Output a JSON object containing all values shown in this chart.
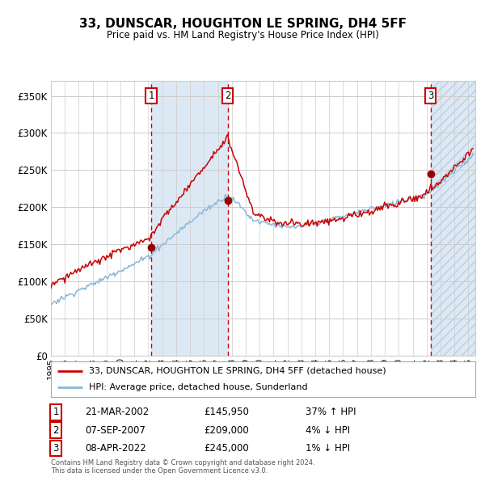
{
  "title": "33, DUNSCAR, HOUGHTON LE SPRING, DH4 5FF",
  "subtitle": "Price paid vs. HM Land Registry's House Price Index (HPI)",
  "ylabel_ticks": [
    "£0",
    "£50K",
    "£100K",
    "£150K",
    "£200K",
    "£250K",
    "£300K",
    "£350K"
  ],
  "ytick_values": [
    0,
    50000,
    100000,
    150000,
    200000,
    250000,
    300000,
    350000
  ],
  "ylim": [
    0,
    370000
  ],
  "x_start_year": 1995,
  "x_end_year": 2025,
  "legend_line1": "33, DUNSCAR, HOUGHTON LE SPRING, DH4 5FF (detached house)",
  "legend_line2": "HPI: Average price, detached house, Sunderland",
  "sale1_date": "21-MAR-2002",
  "sale1_price": 145950,
  "sale1_pct": "37%",
  "sale1_dir": "↑",
  "sale2_date": "07-SEP-2007",
  "sale2_price": 209000,
  "sale2_pct": "4%",
  "sale2_dir": "↓",
  "sale3_date": "08-APR-2022",
  "sale3_price": 245000,
  "sale3_pct": "1%",
  "sale3_dir": "↓",
  "copyright_text": "Contains HM Land Registry data © Crown copyright and database right 2024.\nThis data is licensed under the Open Government Licence v3.0.",
  "red_line_color": "#cc0000",
  "blue_line_color": "#8ab8d8",
  "highlight_color": "#dce9f5",
  "dashed_vline_color": "#cc0000",
  "grid_color": "#cccccc",
  "bg_color": "#ffffff",
  "hatch_color": "#aabbd0",
  "marker_color": "#990000",
  "box_color": "#cc0000"
}
